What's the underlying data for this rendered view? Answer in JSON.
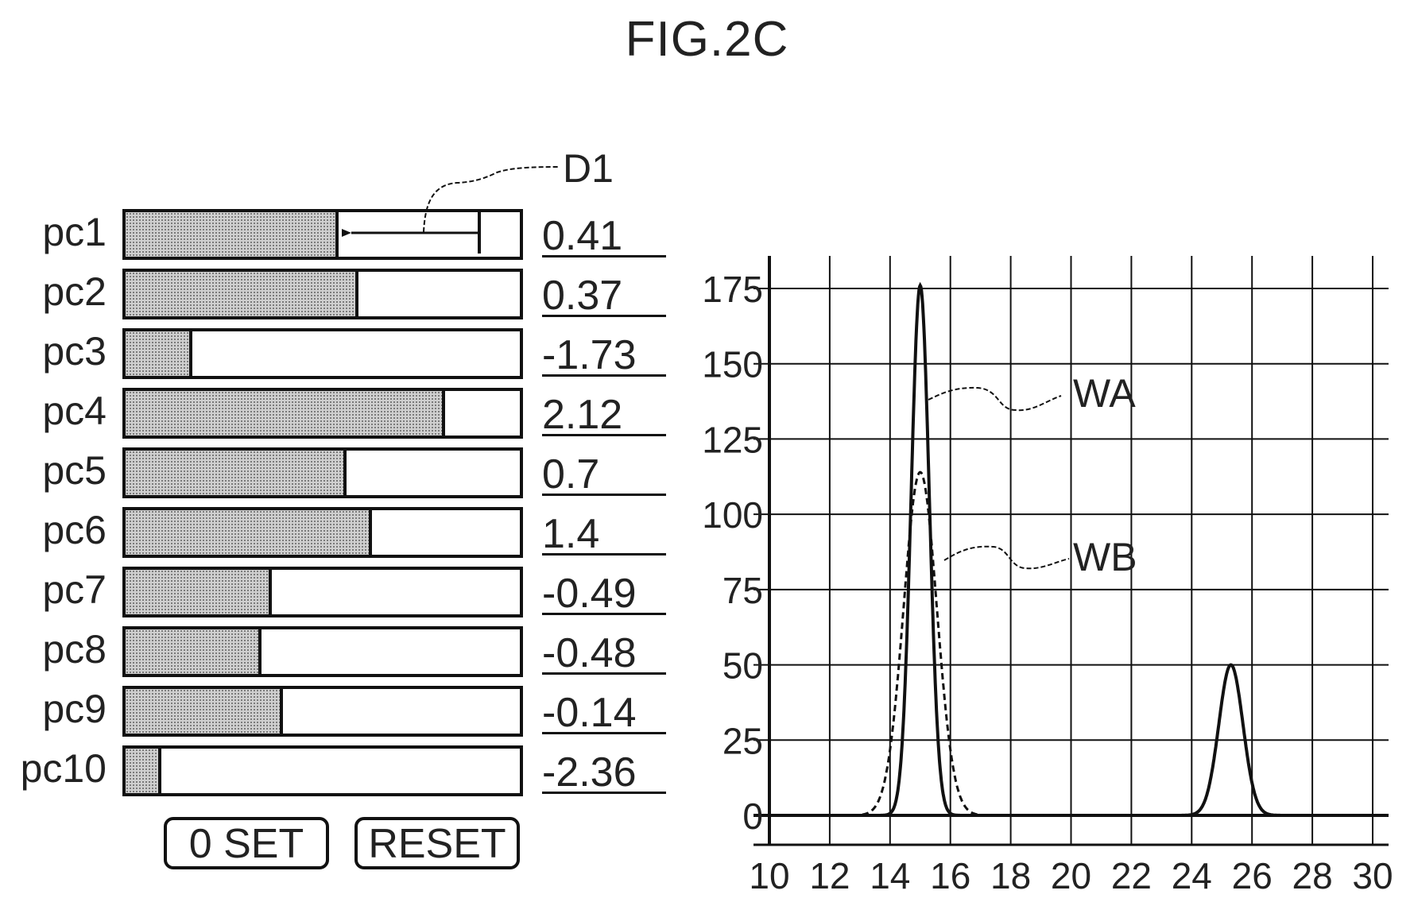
{
  "figure": {
    "title": "FIG.2C"
  },
  "callouts": {
    "slider": "D1",
    "wave_a": "WA",
    "wave_b": "WB"
  },
  "sliders": [
    {
      "label": "pc1",
      "value": "0.41",
      "fill_fraction": 0.54
    },
    {
      "label": "pc2",
      "value": "0.37",
      "fill_fraction": 0.59
    },
    {
      "label": "pc3",
      "value": "-1.73",
      "fill_fraction": 0.17
    },
    {
      "label": "pc4",
      "value": "2.12",
      "fill_fraction": 0.81
    },
    {
      "label": "pc5",
      "value": "0.7",
      "fill_fraction": 0.56
    },
    {
      "label": "pc6",
      "value": "1.4",
      "fill_fraction": 0.625
    },
    {
      "label": "pc7",
      "value": "-0.49",
      "fill_fraction": 0.37
    },
    {
      "label": "pc8",
      "value": "-0.48",
      "fill_fraction": 0.345
    },
    {
      "label": "pc9",
      "value": "-0.14",
      "fill_fraction": 0.4
    },
    {
      "label": "pc10",
      "value": "-2.36",
      "fill_fraction": 0.09
    }
  ],
  "buttons": {
    "zero_set": "0 SET",
    "reset": "RESET"
  },
  "chart_data": {
    "type": "line",
    "title": "",
    "xlabel": "",
    "ylabel": "",
    "xlim": [
      10,
      30
    ],
    "ylim": [
      0,
      175
    ],
    "grid": true,
    "x_ticks": [
      "10",
      "12",
      "14",
      "16",
      "18",
      "20",
      "22",
      "24",
      "26",
      "28",
      "30"
    ],
    "y_ticks": [
      "0",
      "25",
      "50",
      "75",
      "100",
      "125",
      "150",
      "175"
    ],
    "series": [
      {
        "name": "WA",
        "style": "solid",
        "peaks": [
          {
            "center": 15.0,
            "height": 176,
            "width": 0.3
          },
          {
            "center": 25.3,
            "height": 50,
            "width": 0.4
          }
        ]
      },
      {
        "name": "WB",
        "style": "dashed",
        "peaks": [
          {
            "center": 15.0,
            "height": 114,
            "width": 0.55
          }
        ]
      }
    ]
  }
}
